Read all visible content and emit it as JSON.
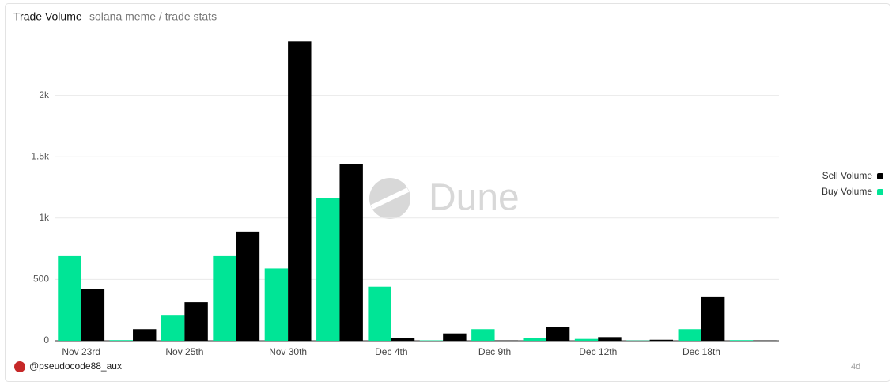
{
  "chart_data": {
    "type": "bar",
    "title": "Trade Volume",
    "subtitle": "solana meme / trade stats",
    "author": "@pseudocode88_aux",
    "watermark": "Dune",
    "period": "4d",
    "categories": [
      "Nov 23rd",
      null,
      "Nov 25th",
      null,
      "Nov 30th",
      null,
      "Dec 4th",
      null,
      "Dec 9th",
      null,
      "Dec 12th",
      null,
      "Dec 18th",
      null
    ],
    "series": [
      {
        "name": "Buy Volume",
        "color": "#00e596",
        "values": [
          690,
          5,
          205,
          690,
          590,
          1160,
          440,
          3,
          95,
          20,
          15,
          2,
          95,
          5
        ]
      },
      {
        "name": "Sell Volume",
        "color": "#000000",
        "values": [
          420,
          95,
          315,
          890,
          2440,
          1440,
          25,
          60,
          3,
          115,
          30,
          8,
          355,
          3
        ]
      }
    ],
    "ylim": [
      0,
      2500
    ],
    "yticks": [
      0,
      500,
      {
        "value": 1000,
        "label": "1k"
      },
      {
        "value": 1500,
        "label": "1.5k"
      },
      {
        "value": 2000,
        "label": "2k"
      }
    ],
    "grid": true,
    "legend": "right"
  }
}
